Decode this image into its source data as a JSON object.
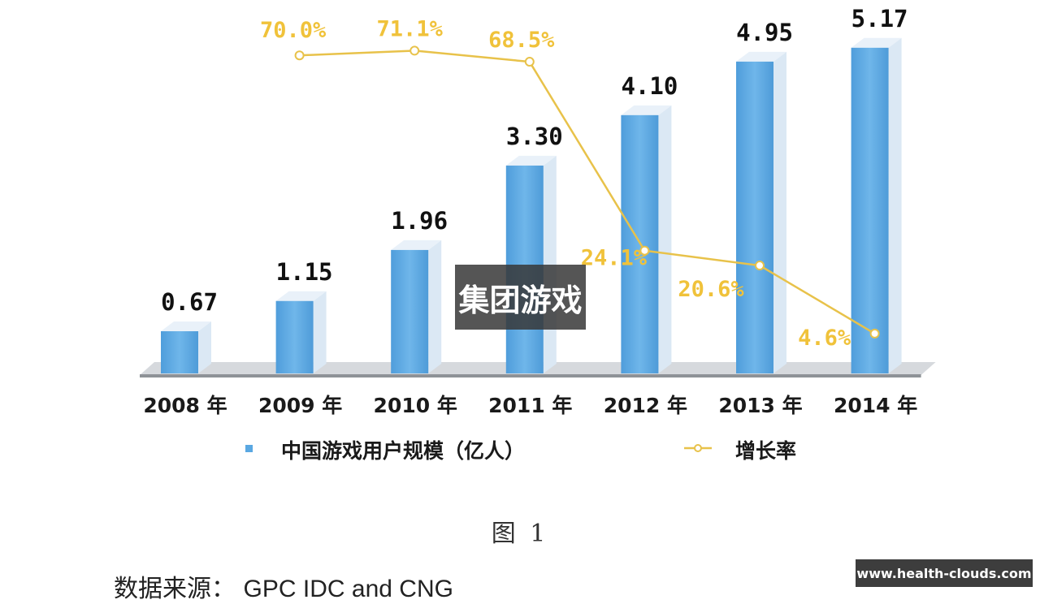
{
  "chart_data": {
    "type": "bar",
    "categories": [
      "2008 年",
      "2009 年",
      "2010 年",
      "2011 年",
      "2012 年",
      "2013 年",
      "2014 年"
    ],
    "series": [
      {
        "name": "中国游戏用户规模（亿人）",
        "type": "bar",
        "values": [
          0.67,
          1.15,
          1.96,
          3.3,
          4.1,
          4.95,
          5.17
        ],
        "labels": [
          "0.67",
          "1.15",
          "1.96",
          "3.30",
          "4.10",
          "4.95",
          "5.17"
        ],
        "color": "#5aa8e2"
      },
      {
        "name": "增长率",
        "type": "line",
        "values": [
          null,
          70.0,
          71.1,
          68.5,
          24.1,
          20.6,
          4.6
        ],
        "labels": [
          "",
          "70.0%",
          "71.1%",
          "68.5%",
          "24.1%",
          "20.6%",
          "4.6%"
        ],
        "color": "#e8c24a"
      }
    ],
    "legend_position": "bottom",
    "grid": false
  },
  "caption": "图 1",
  "source_prefix": "数据来源：",
  "source_text": "GPC IDC and CNG",
  "overlay_text": "集团游戏",
  "watermark_url": "www.health-clouds.com"
}
